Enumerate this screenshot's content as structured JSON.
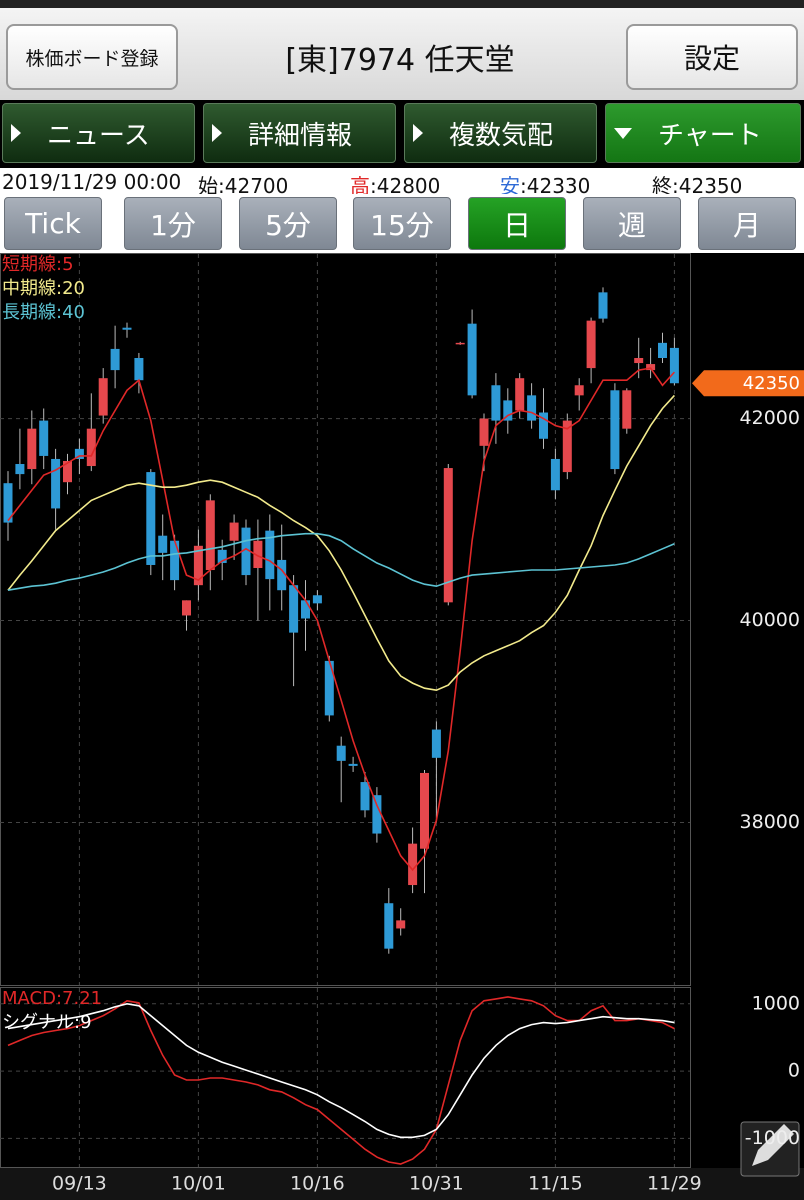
{
  "header": {
    "left_button": "株価ボード登録",
    "title": "[東]7974 任天堂",
    "right_button": "設定"
  },
  "tabs": [
    "ニュース",
    "詳細情報",
    "複数気配",
    "チャート"
  ],
  "quote": {
    "datetime": "2019/11/29 00:00",
    "open_label": "始:",
    "open": 42700,
    "high_label": "高",
    "high": 42800,
    "low_label": "安",
    "low": 42330,
    "close_label": "終:",
    "close": 42350
  },
  "periods": [
    "Tick",
    "1分",
    "5分",
    "15分",
    "日",
    "週",
    "月"
  ],
  "chart_data": [
    {
      "type": "candlestick",
      "categories": [
        null,
        null,
        null,
        null,
        null,
        null,
        "09/13",
        null,
        null,
        null,
        null,
        null,
        null,
        null,
        null,
        null,
        "10/01",
        null,
        null,
        null,
        null,
        null,
        null,
        null,
        null,
        null,
        "10/16",
        null,
        null,
        null,
        null,
        null,
        null,
        null,
        null,
        null,
        "10/31",
        null,
        null,
        null,
        null,
        null,
        null,
        null,
        null,
        null,
        "11/15",
        null,
        null,
        null,
        null,
        null,
        null,
        null,
        null,
        null,
        "11/29"
      ],
      "open": [
        41360,
        41550,
        41500,
        41980,
        41600,
        41370,
        41700,
        41530,
        42030,
        42690,
        42900,
        42600,
        41470,
        40840,
        40790,
        40050,
        40350,
        40500,
        40700,
        40790,
        40920,
        40520,
        40890,
        40600,
        40350,
        40200,
        40250,
        39600,
        38760,
        38580,
        38400,
        38270,
        37200,
        36950,
        37380,
        37740,
        38920,
        40180,
        42740,
        42940,
        41730,
        42330,
        42180,
        42080,
        42230,
        42060,
        41600,
        41470,
        42230,
        42500,
        43250,
        42280,
        41900,
        42550,
        42480,
        42750,
        42700
      ],
      "high": [
        41480,
        41900,
        42080,
        42100,
        41700,
        41650,
        41800,
        42250,
        42500,
        42920,
        42950,
        42650,
        41500,
        41050,
        40850,
        40200,
        40900,
        41250,
        40800,
        41050,
        41000,
        41000,
        41050,
        40950,
        40450,
        40400,
        40300,
        39650,
        38850,
        38650,
        38500,
        38350,
        37350,
        37150,
        37950,
        38520,
        39000,
        41550,
        42760,
        43080,
        42050,
        42450,
        42300,
        42450,
        42350,
        42300,
        41700,
        42050,
        42400,
        43000,
        43300,
        42350,
        42300,
        42800,
        42700,
        42850,
        42800
      ],
      "low": [
        40790,
        41300,
        41350,
        41500,
        40900,
        41250,
        41450,
        41480,
        41950,
        42300,
        42800,
        42250,
        40450,
        40400,
        40300,
        39900,
        40200,
        40300,
        40400,
        40600,
        40350,
        40000,
        40100,
        40100,
        39350,
        39700,
        40100,
        39000,
        38200,
        38500,
        38050,
        37800,
        36700,
        36880,
        37300,
        37300,
        38000,
        40150,
        42730,
        42200,
        41480,
        41750,
        41850,
        42000,
        41900,
        41700,
        41200,
        41400,
        42080,
        42350,
        42950,
        41450,
        41850,
        42400,
        42400,
        42550,
        42330
      ],
      "close": [
        40970,
        41450,
        41900,
        41630,
        41110,
        41580,
        41600,
        41900,
        42400,
        42480,
        42880,
        42380,
        40550,
        40670,
        40400,
        40200,
        40740,
        41190,
        40570,
        40970,
        40450,
        40790,
        40410,
        40300,
        39880,
        40020,
        40170,
        39060,
        38610,
        38560,
        38120,
        37890,
        36750,
        37030,
        37790,
        38490,
        38640,
        41510,
        42750,
        42230,
        42000,
        41980,
        41980,
        42400,
        41980,
        41800,
        41290,
        41980,
        42330,
        42970,
        42990,
        41500,
        42280,
        42600,
        42540,
        42600,
        42350
      ],
      "up_color": "#e5484d",
      "down_color": "#2e9ad6",
      "series": [
        {
          "name": "短期線:5",
          "color": "#e02828",
          "values": [
            40990,
            41140,
            41290,
            41440,
            41490,
            41560,
            41630,
            41630,
            41880,
            42080,
            42280,
            42380,
            41980,
            41390,
            40790,
            40450,
            40400,
            40500,
            40590,
            40640,
            40710,
            40640,
            40590,
            40500,
            40350,
            40200,
            40000,
            39600,
            39210,
            38810,
            38470,
            38170,
            37920,
            37670,
            37530,
            37670,
            38020,
            38710,
            39700,
            40790,
            41580,
            41930,
            42030,
            42080,
            42060,
            42000,
            41930,
            41900,
            41980,
            42180,
            42380,
            42380,
            42380,
            42480,
            42500,
            42330,
            42460
          ]
        },
        {
          "name": "中期線:20",
          "color": "#f2ea8c",
          "values": [
            40300,
            40450,
            40590,
            40740,
            40890,
            40990,
            41090,
            41190,
            41240,
            41290,
            41340,
            41360,
            41340,
            41320,
            41320,
            41340,
            41370,
            41390,
            41370,
            41320,
            41270,
            41220,
            41140,
            41070,
            40990,
            40920,
            40840,
            40690,
            40500,
            40280,
            40050,
            39820,
            39600,
            39450,
            39380,
            39330,
            39310,
            39360,
            39490,
            39580,
            39650,
            39700,
            39750,
            39800,
            39880,
            39950,
            40080,
            40250,
            40500,
            40740,
            41040,
            41290,
            41530,
            41730,
            41930,
            42100,
            42230
          ]
        },
        {
          "name": "長期線:40",
          "color": "#5cc3d3",
          "values": [
            40300,
            40320,
            40340,
            40350,
            40370,
            40400,
            40420,
            40450,
            40480,
            40520,
            40570,
            40610,
            40640,
            40640,
            40660,
            40670,
            40690,
            40710,
            40730,
            40760,
            40790,
            40810,
            40820,
            40840,
            40850,
            40860,
            40860,
            40840,
            40790,
            40710,
            40640,
            40570,
            40520,
            40460,
            40400,
            40360,
            40340,
            40380,
            40420,
            40450,
            40460,
            40470,
            40480,
            40490,
            40500,
            40500,
            40500,
            40510,
            40520,
            40530,
            40540,
            40550,
            40570,
            40610,
            40660,
            40710,
            40760
          ]
        }
      ],
      "ylim": [
        36390,
        43630
      ],
      "yticks": [
        38000,
        40000,
        42000
      ],
      "grid": true
    },
    {
      "type": "line",
      "series": [
        {
          "name": "MACD:7.21",
          "color": "#e02828",
          "values": [
            382,
            456,
            529,
            573,
            603,
            632,
            676,
            750,
            823,
            926,
            1044,
            1014,
            603,
            235,
            -59,
            -132,
            -132,
            -103,
            -103,
            -132,
            -162,
            -206,
            -279,
            -309,
            -397,
            -500,
            -573,
            -720,
            -867,
            -1014,
            -1161,
            -1279,
            -1352,
            -1382,
            -1308,
            -1161,
            -867,
            -206,
            456,
            897,
            1044,
            1073,
            1103,
            1073,
            1044,
            970,
            823,
            750,
            750,
            897,
            970,
            750,
            750,
            779,
            750,
            720,
            632
          ]
        },
        {
          "name": "シグナル:9",
          "color": "#ffffff",
          "values": [
            632,
            661,
            691,
            720,
            750,
            779,
            808,
            853,
            897,
            955,
            1000,
            970,
            823,
            676,
            529,
            382,
            279,
            206,
            132,
            74,
            15,
            -44,
            -103,
            -162,
            -221,
            -279,
            -353,
            -456,
            -544,
            -647,
            -750,
            -867,
            -941,
            -985,
            -985,
            -956,
            -867,
            -647,
            -353,
            -59,
            191,
            382,
            529,
            632,
            691,
            720,
            706,
            720,
            750,
            779,
            808,
            794,
            779,
            779,
            764,
            750,
            720
          ]
        }
      ],
      "ylim": [
        -1426,
        1235
      ],
      "yticks": [
        1000,
        0,
        -1000
      ],
      "grid": true
    }
  ]
}
